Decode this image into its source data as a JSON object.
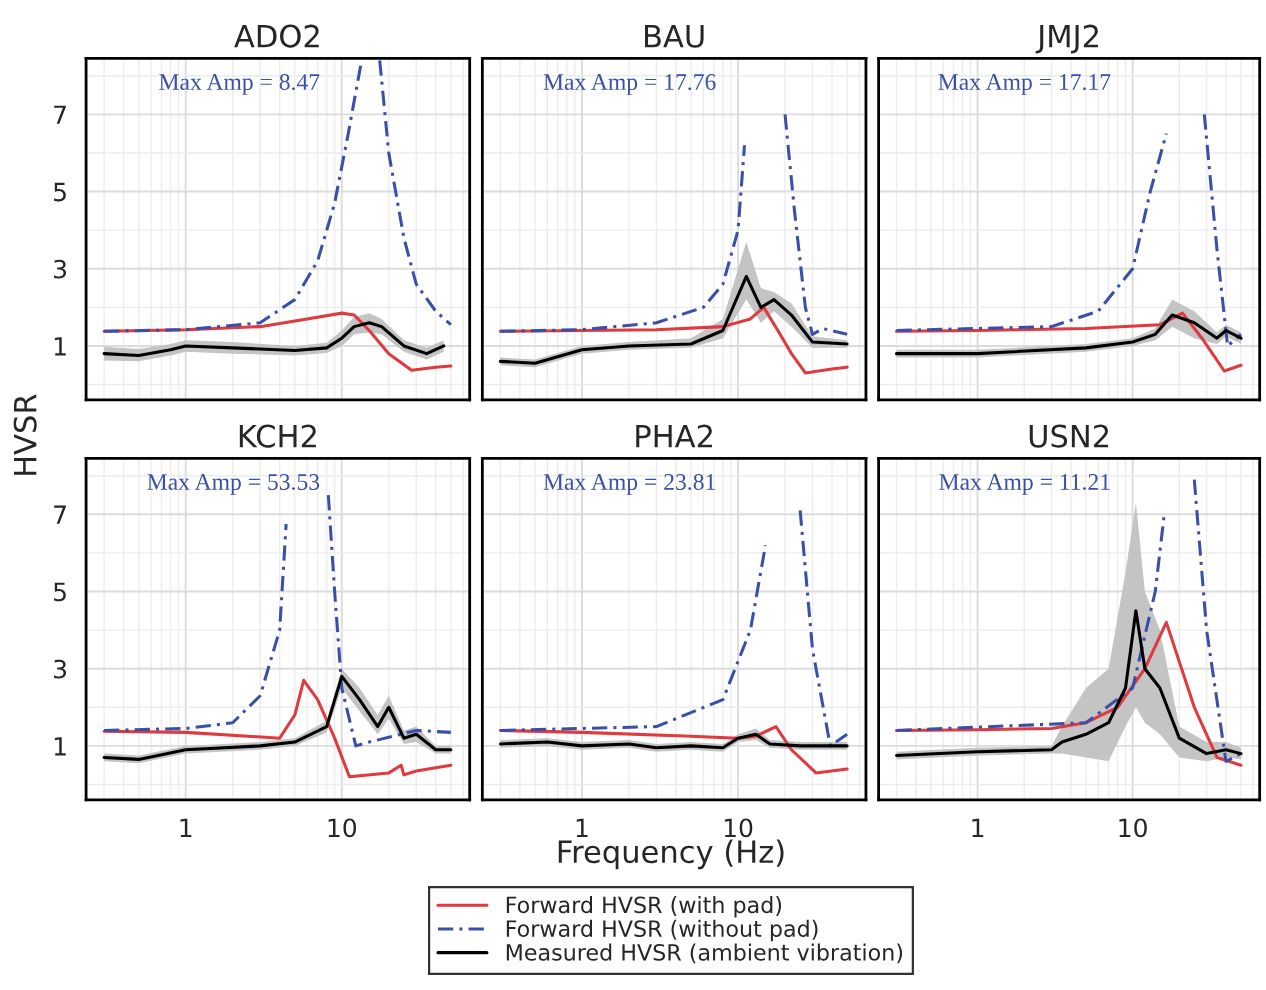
{
  "chart_data": [
    {
      "type": "line",
      "title": "ADO2",
      "xlabel": "Frequency (Hz)",
      "ylabel": "HVSR",
      "log": "x",
      "xlim": [
        0.23,
        66
      ],
      "ylim": [
        -0.4,
        8.45
      ],
      "xticks": [
        1,
        10
      ],
      "yticks": [
        1,
        3,
        5,
        7
      ],
      "grid": true,
      "legend": "bottom",
      "tick_labels": "y",
      "annotations": [
        "Max Amp = 8.47"
      ],
      "series": [
        {
          "name": "Forward HVSR (with pad)",
          "color": "#e0393e",
          "line_style": "solid",
          "x": [
            0.3,
            1,
            3,
            6,
            10,
            12,
            15,
            20,
            28,
            40,
            50
          ],
          "values": [
            1.38,
            1.42,
            1.5,
            1.7,
            1.85,
            1.8,
            1.4,
            0.8,
            0.37,
            0.45,
            0.48
          ]
        },
        {
          "name": "Forward HVSR (without pad)",
          "color": "#3a4fa8",
          "line_style": "dashed",
          "x": [
            0.3,
            1,
            3,
            5,
            7,
            9,
            11,
            13.4,
            15,
            17.5,
            20,
            25,
            30,
            40,
            50
          ],
          "values": [
            1.38,
            1.42,
            1.6,
            2.2,
            3.2,
            4.7,
            6.5,
            8.4,
            null,
            8.4,
            6.0,
            3.8,
            2.6,
            1.9,
            1.55
          ]
        },
        {
          "name": "Measured HVSR (ambient vibration)",
          "color": "#000000",
          "line_style": "solid",
          "x": [
            0.3,
            0.5,
            0.8,
            1,
            2,
            5,
            8,
            10,
            12,
            15,
            18,
            25,
            35,
            45
          ],
          "values": [
            0.8,
            0.75,
            0.9,
            1.0,
            0.95,
            0.88,
            0.95,
            1.2,
            1.5,
            1.6,
            1.5,
            1.0,
            0.8,
            1.0
          ],
          "lower": [
            0.62,
            0.6,
            0.75,
            0.85,
            0.8,
            0.75,
            0.82,
            1.0,
            1.3,
            1.35,
            1.3,
            0.85,
            0.65,
            0.85
          ],
          "upper": [
            0.98,
            0.92,
            1.05,
            1.15,
            1.1,
            1.0,
            1.08,
            1.4,
            1.75,
            1.85,
            1.7,
            1.15,
            0.95,
            1.15
          ]
        }
      ]
    },
    {
      "type": "line",
      "title": "BAU",
      "log": "x",
      "xlim": [
        0.23,
        66
      ],
      "ylim": [
        -0.4,
        8.45
      ],
      "xticks": [
        1,
        10
      ],
      "yticks": [
        1,
        3,
        5,
        7
      ],
      "grid": true,
      "tick_labels": false,
      "annotations": [
        "Max Amp = 17.76"
      ],
      "series": [
        {
          "color": "#e0393e",
          "line_style": "solid",
          "x": [
            0.3,
            1,
            3,
            8,
            12,
            14.6,
            18,
            22,
            27,
            40,
            50
          ],
          "values": [
            1.38,
            1.4,
            1.42,
            1.5,
            1.7,
            2.0,
            1.4,
            0.8,
            0.3,
            0.4,
            0.45
          ]
        },
        {
          "color": "#3a4fa8",
          "line_style": "dashed",
          "x": [
            0.3,
            1,
            3,
            6,
            8,
            10,
            11,
            15,
            20,
            23,
            27,
            30,
            35,
            50
          ],
          "values": [
            1.38,
            1.42,
            1.6,
            2.0,
            2.6,
            4.0,
            6.2,
            null,
            7.0,
            4.5,
            2.0,
            1.3,
            1.45,
            1.3
          ]
        },
        {
          "color": "#000000",
          "line_style": "solid",
          "x": [
            0.3,
            0.5,
            1,
            2,
            5,
            8,
            11.3,
            14,
            17,
            22,
            30,
            50
          ],
          "values": [
            0.6,
            0.55,
            0.9,
            1.0,
            1.05,
            1.4,
            2.8,
            2.0,
            2.2,
            1.8,
            1.1,
            1.05
          ],
          "lower": [
            0.5,
            0.45,
            0.8,
            0.9,
            0.95,
            1.2,
            2.2,
            1.6,
            1.9,
            1.5,
            0.95,
            0.95
          ],
          "upper": [
            0.7,
            0.65,
            1.0,
            1.1,
            1.2,
            1.7,
            3.7,
            2.5,
            2.4,
            2.1,
            1.25,
            1.15
          ]
        }
      ]
    },
    {
      "type": "line",
      "title": "JMJ2",
      "log": "x",
      "xlim": [
        0.23,
        66
      ],
      "ylim": [
        -0.4,
        8.45
      ],
      "xticks": [
        1,
        10
      ],
      "yticks": [
        1,
        3,
        5,
        7
      ],
      "grid": true,
      "tick_labels": false,
      "annotations": [
        "Max Amp = 17.17"
      ],
      "series": [
        {
          "color": "#e0393e",
          "line_style": "solid",
          "x": [
            0.3,
            1,
            5,
            15,
            21,
            28,
            39,
            50
          ],
          "values": [
            1.38,
            1.4,
            1.45,
            1.55,
            1.85,
            1.2,
            0.35,
            0.5
          ]
        },
        {
          "color": "#3a4fa8",
          "line_style": "dashed",
          "x": [
            0.3,
            3,
            6,
            10,
            13,
            16.5,
            22,
            29,
            35,
            41,
            50
          ],
          "values": [
            1.4,
            1.5,
            1.9,
            3.0,
            5.0,
            6.5,
            null,
            7.0,
            3.5,
            1.0,
            1.3
          ]
        },
        {
          "color": "#000000",
          "line_style": "solid",
          "x": [
            0.3,
            1,
            5,
            10,
            14,
            18,
            25,
            35,
            40,
            50
          ],
          "values": [
            0.8,
            0.8,
            0.95,
            1.1,
            1.3,
            1.8,
            1.6,
            1.2,
            1.4,
            1.2
          ],
          "lower": [
            0.7,
            0.7,
            0.85,
            1.0,
            1.15,
            1.5,
            1.2,
            1.05,
            1.25,
            1.05
          ],
          "upper": [
            0.9,
            0.9,
            1.05,
            1.2,
            1.45,
            2.2,
            1.9,
            1.35,
            1.55,
            1.35
          ]
        }
      ]
    },
    {
      "type": "line",
      "title": "KCH2",
      "log": "x",
      "xlim": [
        0.23,
        66
      ],
      "ylim": [
        -0.4,
        8.45
      ],
      "xticks": [
        1,
        10
      ],
      "yticks": [
        1,
        3,
        5,
        7
      ],
      "grid": true,
      "annotations": [
        "Max Amp = 53.53"
      ],
      "series": [
        {
          "color": "#e0393e",
          "line_style": "solid",
          "x": [
            0.3,
            1,
            4,
            5,
            5.7,
            7,
            9,
            11.2,
            20,
            24,
            25,
            30,
            50
          ],
          "values": [
            1.38,
            1.35,
            1.2,
            1.8,
            2.7,
            2.2,
            1.2,
            0.2,
            0.3,
            0.5,
            0.25,
            0.35,
            0.5
          ]
        },
        {
          "color": "#3a4fa8",
          "line_style": "dashed",
          "x": [
            0.3,
            1,
            2,
            3,
            4,
            4.4,
            6,
            8.2,
            9,
            10,
            12.3,
            15,
            30,
            50
          ],
          "values": [
            1.4,
            1.45,
            1.6,
            2.3,
            4.0,
            6.75,
            null,
            7.5,
            5.0,
            2.5,
            1.0,
            1.1,
            1.4,
            1.35
          ]
        },
        {
          "color": "#000000",
          "line_style": "solid",
          "x": [
            0.3,
            0.5,
            1,
            3,
            5,
            8,
            10,
            13,
            17,
            20,
            25,
            30,
            40,
            50
          ],
          "values": [
            0.7,
            0.65,
            0.9,
            1.0,
            1.1,
            1.5,
            2.8,
            2.2,
            1.5,
            2.0,
            1.2,
            1.3,
            0.9,
            0.9
          ],
          "lower": [
            0.6,
            0.55,
            0.8,
            0.9,
            1.0,
            1.35,
            2.5,
            1.9,
            1.3,
            1.7,
            1.05,
            1.1,
            0.8,
            0.8
          ],
          "upper": [
            0.8,
            0.75,
            1.0,
            1.1,
            1.2,
            1.65,
            3.0,
            2.5,
            1.8,
            2.3,
            1.4,
            1.5,
            1.0,
            1.0
          ]
        }
      ]
    },
    {
      "type": "line",
      "title": "PHA2",
      "log": "x",
      "xlim": [
        0.23,
        66
      ],
      "ylim": [
        -0.4,
        8.45
      ],
      "xticks": [
        1,
        10
      ],
      "yticks": [
        1,
        3,
        5,
        7
      ],
      "grid": true,
      "tick_labels": "x",
      "annotations": [
        "Max Amp = 23.81"
      ],
      "series": [
        {
          "color": "#e0393e",
          "line_style": "solid",
          "x": [
            0.3,
            1,
            5,
            10,
            13,
            17.5,
            22,
            31.6,
            50
          ],
          "values": [
            1.4,
            1.35,
            1.25,
            1.2,
            1.25,
            1.5,
            0.9,
            0.3,
            0.4
          ]
        },
        {
          "color": "#3a4fa8",
          "line_style": "dashed",
          "x": [
            0.3,
            3,
            8,
            12,
            15,
            20,
            25,
            30,
            39,
            50
          ],
          "values": [
            1.4,
            1.5,
            2.2,
            4.0,
            6.2,
            null,
            7.1,
            3.5,
            1.0,
            1.3
          ]
        },
        {
          "color": "#000000",
          "line_style": "solid",
          "x": [
            0.3,
            0.6,
            1,
            2,
            3,
            5,
            8,
            10,
            13,
            16,
            25,
            50
          ],
          "values": [
            1.05,
            1.1,
            1.0,
            1.05,
            0.95,
            1.0,
            0.95,
            1.2,
            1.3,
            1.05,
            1.0,
            1.0
          ],
          "lower": [
            0.95,
            1.0,
            0.9,
            0.95,
            0.85,
            0.9,
            0.85,
            1.1,
            1.15,
            0.95,
            0.9,
            0.9
          ],
          "upper": [
            1.15,
            1.2,
            1.1,
            1.15,
            1.05,
            1.1,
            1.05,
            1.3,
            1.45,
            1.15,
            1.1,
            1.1
          ]
        }
      ]
    },
    {
      "type": "line",
      "title": "USN2",
      "log": "x",
      "xlim": [
        0.23,
        66
      ],
      "ylim": [
        -0.4,
        8.45
      ],
      "xticks": [
        1,
        10
      ],
      "yticks": [
        1,
        3,
        5,
        7
      ],
      "grid": true,
      "tick_labels": "x",
      "annotations": [
        "Max Amp = 11.21"
      ],
      "series": [
        {
          "color": "#e0393e",
          "line_style": "solid",
          "x": [
            0.3,
            1,
            3,
            5,
            8,
            12,
            16.5,
            25,
            35,
            50
          ],
          "values": [
            1.4,
            1.42,
            1.45,
            1.6,
            2.0,
            3.0,
            4.2,
            2.0,
            0.7,
            0.5
          ]
        },
        {
          "color": "#3a4fa8",
          "line_style": "dashed",
          "x": [
            0.3,
            5,
            10,
            14,
            16,
            20,
            25,
            30,
            40,
            50
          ],
          "values": [
            1.4,
            1.6,
            2.5,
            5.0,
            7.0,
            null,
            7.9,
            4.0,
            0.6,
            0.8
          ]
        },
        {
          "color": "#000000",
          "line_style": "solid",
          "x": [
            0.3,
            1,
            3,
            3.5,
            5,
            7,
            9,
            10.5,
            12,
            15,
            20,
            30,
            40,
            50
          ],
          "values": [
            0.75,
            0.85,
            0.9,
            1.1,
            1.3,
            1.6,
            2.5,
            4.5,
            3.0,
            2.5,
            1.2,
            0.8,
            0.9,
            0.8
          ],
          "lower": [
            0.65,
            0.75,
            0.8,
            0.8,
            0.7,
            0.6,
            1.5,
            2.0,
            1.6,
            1.3,
            0.7,
            0.6,
            0.7,
            0.65
          ],
          "upper": [
            0.85,
            0.95,
            1.0,
            1.5,
            2.5,
            3.0,
            5.5,
            7.3,
            5.0,
            4.0,
            1.5,
            1.1,
            1.1,
            0.95
          ]
        }
      ]
    }
  ]
}
